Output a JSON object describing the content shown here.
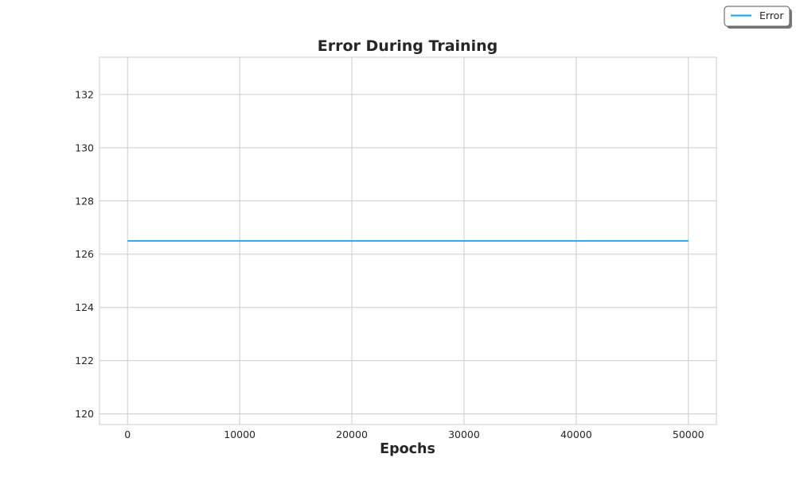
{
  "chart_data": {
    "type": "line",
    "title": "Error During Training",
    "xlabel": "Epochs",
    "ylabel": "",
    "xlim": [
      -2500,
      52500
    ],
    "ylim": [
      119.6,
      133.4
    ],
    "xticks": [
      0,
      10000,
      20000,
      30000,
      40000,
      50000
    ],
    "yticks": [
      120,
      122,
      124,
      126,
      128,
      130,
      132
    ],
    "grid": true,
    "legend": "outside-top-right",
    "series": [
      {
        "name": "Error",
        "color": "#0aa5f0",
        "x": [
          0,
          50000
        ],
        "y": [
          126.5,
          126.5
        ]
      }
    ]
  }
}
